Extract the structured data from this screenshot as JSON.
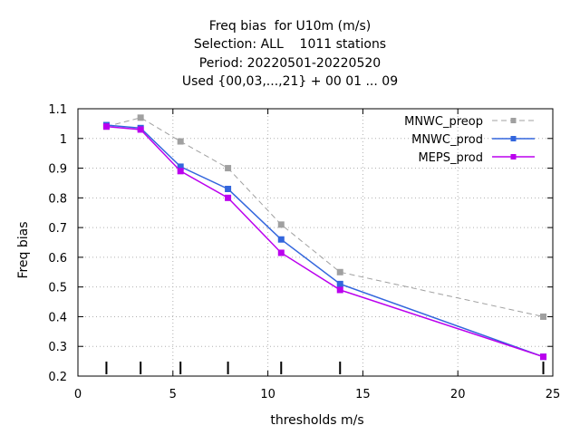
{
  "chart_data": {
    "type": "line",
    "title_lines": [
      "Freq bias  for U10m (m/s)",
      "Selection: ALL    1011 stations",
      "Period: 20220501-20220520",
      "Used {00,03,...,21} + 00 01 ... 09"
    ],
    "xlabel": "thresholds m/s",
    "ylabel": "Freq bias",
    "xlim": [
      0,
      25
    ],
    "ylim": [
      0.2,
      1.1
    ],
    "xticks": [
      0,
      5,
      10,
      15,
      20,
      25
    ],
    "yticks": [
      0.2,
      0.3,
      0.4,
      0.5,
      0.6,
      0.7,
      0.8,
      0.9,
      1,
      1.1
    ],
    "grid": true,
    "legend_position": "top-right",
    "threshold_markers": [
      1.5,
      3.3,
      5.4,
      7.9,
      10.7,
      13.8,
      24.5
    ],
    "x": [
      1.5,
      3.3,
      5.4,
      7.9,
      10.7,
      13.8,
      24.5
    ],
    "series": [
      {
        "name": "MNWC_preop",
        "color": "#a0a0a0",
        "dashed": true,
        "values": [
          1.04,
          1.07,
          0.99,
          0.9,
          0.71,
          0.55,
          0.4
        ]
      },
      {
        "name": "MNWC_prod",
        "color": "#3366dd",
        "dashed": false,
        "values": [
          1.045,
          1.035,
          0.905,
          0.83,
          0.66,
          0.51,
          0.265
        ]
      },
      {
        "name": "MEPS_prod",
        "color": "#bb00ee",
        "dashed": false,
        "values": [
          1.04,
          1.03,
          0.89,
          0.8,
          0.615,
          0.49,
          0.265
        ]
      }
    ]
  }
}
